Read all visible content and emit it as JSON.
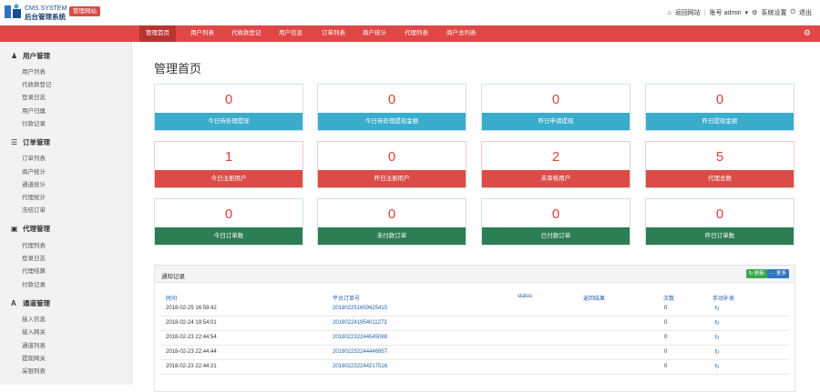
{
  "header": {
    "logo_line1": "CMS SYSTEM",
    "logo_line2": "后台管理系统",
    "badge": "管理网站",
    "visit_site": "返回网站",
    "account": "账号 admin",
    "settings": "系统设置",
    "logout": "退出"
  },
  "menu": [
    "管理首页",
    "用户列表",
    "代收款登记",
    "用户信息",
    "订单列表",
    "商户统计",
    "代理列表",
    "商户总列表"
  ],
  "sidebar": [
    {
      "title": "用户管理",
      "icon": "user-icon",
      "items": [
        "用户列表",
        "代收款登记",
        "登录日志",
        "用户归属",
        "付款记录"
      ]
    },
    {
      "title": "订单管理",
      "icon": "list-icon",
      "items": [
        "订单列表",
        "商户统计",
        "通道统计",
        "代理统计",
        "冻结订单"
      ]
    },
    {
      "title": "代理管理",
      "icon": "file-icon",
      "items": [
        "代理列表",
        "登录日志",
        "代理结算",
        "付款记录"
      ]
    },
    {
      "title": "通道管理",
      "icon": "font-icon",
      "items": [
        "接入信息",
        "接入网关",
        "通道列表",
        "提现网关",
        "采银列表"
      ]
    }
  ],
  "page_title": "管理首页",
  "cards": [
    {
      "value": "0",
      "label": "今日待处理提现",
      "color": "blue"
    },
    {
      "value": "0",
      "label": "今日待处理提现金额",
      "color": "blue"
    },
    {
      "value": "0",
      "label": "昨日申请提现",
      "color": "blue"
    },
    {
      "value": "0",
      "label": "昨日提现金额",
      "color": "blue"
    },
    {
      "value": "1",
      "label": "今日注册用户",
      "color": "red"
    },
    {
      "value": "0",
      "label": "昨日注册用户",
      "color": "red"
    },
    {
      "value": "2",
      "label": "未审核用户",
      "color": "red"
    },
    {
      "value": "5",
      "label": "代理总数",
      "color": "red"
    },
    {
      "value": "0",
      "label": "今日订单数",
      "color": "green"
    },
    {
      "value": "0",
      "label": "未付款订单",
      "color": "green"
    },
    {
      "value": "0",
      "label": "已付款订单",
      "color": "green"
    },
    {
      "value": "0",
      "label": "昨日订单数",
      "color": "green"
    }
  ],
  "panel": {
    "title": "通知记录",
    "refresh_label": "刷新",
    "more_label": "更多",
    "columns": [
      "时间",
      "平台订单号",
      "status",
      "返回结果",
      "次数",
      "手动补发"
    ],
    "rows": [
      {
        "time": "2018-02-25 16:59:42",
        "order": "201802251659425415",
        "count": "0"
      },
      {
        "time": "2018-02-24 19:54:01",
        "order": "201802241954011273",
        "count": "0"
      },
      {
        "time": "2018-02-23 22:44:54",
        "order": "201802232244545088",
        "count": "0"
      },
      {
        "time": "2018-02-23 22:44:44",
        "order": "201802232244446957",
        "count": "0"
      },
      {
        "time": "2018-02-23 22:44:21",
        "order": "201802232244217516",
        "count": "0"
      }
    ]
  },
  "colors": {
    "menu_red": "#e04746",
    "card_blue": "#3aaccc",
    "card_red": "#db4c49",
    "card_green": "#2d7d55"
  }
}
